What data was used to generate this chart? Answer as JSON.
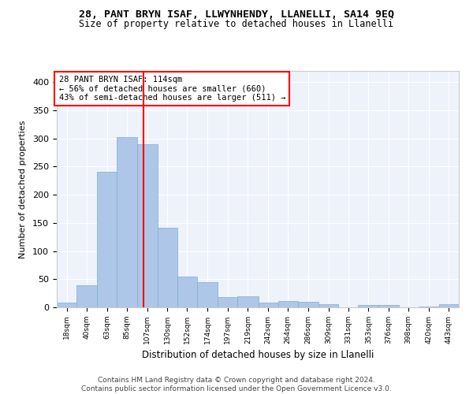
{
  "title": "28, PANT BRYN ISAF, LLWYNHENDY, LLANELLI, SA14 9EQ",
  "subtitle": "Size of property relative to detached houses in Llanelli",
  "xlabel": "Distribution of detached houses by size in Llanelli",
  "ylabel": "Number of detached properties",
  "bar_color": "#aec6e8",
  "bar_edge_color": "#7aafd4",
  "background_color": "#eef2fb",
  "grid_color": "white",
  "vline_x": 114,
  "vline_color": "red",
  "annotation_text": "28 PANT BRYN ISAF: 114sqm\n← 56% of detached houses are smaller (660)\n43% of semi-detached houses are larger (511) →",
  "annotation_box_color": "white",
  "annotation_box_edge_color": "red",
  "footer": "Contains HM Land Registry data © Crown copyright and database right 2024.\nContains public sector information licensed under the Open Government Licence v3.0.",
  "bin_edges": [
    18,
    40,
    63,
    85,
    107,
    130,
    152,
    174,
    197,
    219,
    242,
    264,
    286,
    309,
    331,
    353,
    376,
    398,
    420,
    443,
    465
  ],
  "bar_heights": [
    8,
    39,
    241,
    302,
    290,
    142,
    55,
    45,
    18,
    20,
    9,
    11,
    10,
    5,
    0,
    4,
    4,
    0,
    2,
    5
  ],
  "ylim": [
    0,
    420
  ],
  "yticks": [
    0,
    50,
    100,
    150,
    200,
    250,
    300,
    350,
    400
  ]
}
